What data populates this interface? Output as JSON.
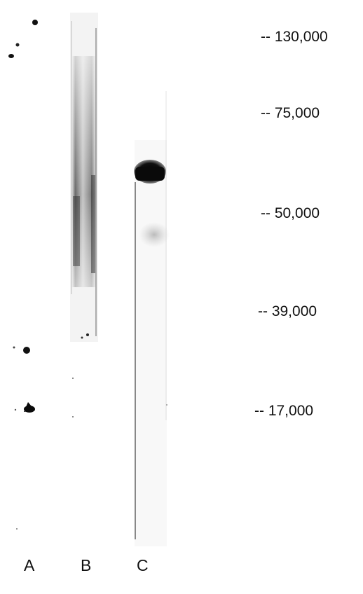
{
  "blot": {
    "markers": [
      {
        "label": "-- 130,000"
      },
      {
        "label": "-- 75,000"
      },
      {
        "label": "-- 50,000"
      },
      {
        "label": "-- 39,000"
      },
      {
        "label": "-- 17,000"
      }
    ],
    "lanes": [
      {
        "label": "A"
      },
      {
        "label": "B"
      },
      {
        "label": "C"
      }
    ]
  },
  "colors": {
    "background": "#ffffff",
    "band_dark": "#0a0a0a",
    "smear": "#3c3c3c",
    "text": "#111111"
  }
}
